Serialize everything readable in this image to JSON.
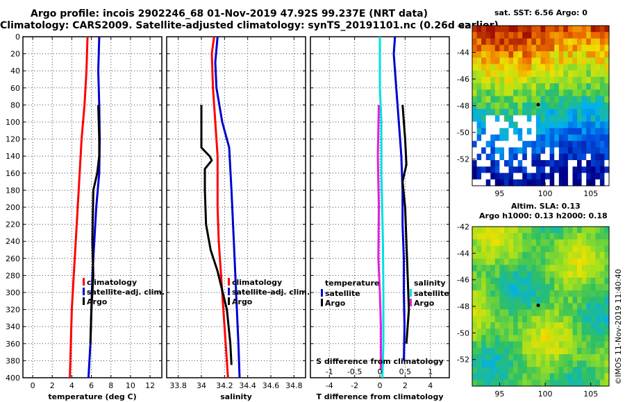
{
  "header": {
    "title_line1": "Argo profile: incois 2902246_68 01-Nov-2019 47.92S 99.237E (NRT data)",
    "title_line2": "Climatology: CARS2009. Satellite-adjusted climatology: synTS_20191101.nc (0.26d earlier)"
  },
  "depth_axis": {
    "min": 0,
    "max": 400,
    "ticks": [
      0,
      20,
      40,
      60,
      80,
      100,
      120,
      140,
      160,
      180,
      200,
      220,
      240,
      260,
      280,
      300,
      320,
      340,
      360,
      380,
      400
    ]
  },
  "colors": {
    "climatology": "#ff0000",
    "satellite": "#0000d0",
    "argo": "#000000",
    "t_diff": "#00e0e0",
    "s_diff": "#e020e0"
  },
  "chart_data": [
    {
      "type": "line",
      "id": "temperature",
      "xlabel": "temperature (deg C)",
      "xlim": [
        -1,
        13.2
      ],
      "xticks": [
        0,
        2,
        4,
        6,
        8,
        10,
        12
      ],
      "ylabel": "depth",
      "ylim": [
        0,
        400
      ],
      "series": [
        {
          "name": "climatology",
          "color": "#ff0000",
          "points": [
            [
              5.6,
              0
            ],
            [
              5.5,
              40
            ],
            [
              5.3,
              80
            ],
            [
              5.0,
              120
            ],
            [
              4.8,
              160
            ],
            [
              4.6,
              200
            ],
            [
              4.4,
              240
            ],
            [
              4.2,
              280
            ],
            [
              4.0,
              320
            ],
            [
              3.9,
              360
            ],
            [
              3.8,
              400
            ]
          ]
        },
        {
          "name": "satellite-adj. clim.",
          "color": "#0000d0",
          "points": [
            [
              6.8,
              0
            ],
            [
              6.7,
              40
            ],
            [
              6.8,
              80
            ],
            [
              6.85,
              120
            ],
            [
              6.8,
              160
            ],
            [
              6.5,
              200
            ],
            [
              6.3,
              240
            ],
            [
              6.1,
              280
            ],
            [
              6.0,
              320
            ],
            [
              5.9,
              360
            ],
            [
              5.7,
              400
            ]
          ]
        },
        {
          "name": "Argo",
          "color": "#000000",
          "points": [
            [
              6.7,
              80
            ],
            [
              6.8,
              120
            ],
            [
              6.8,
              140
            ],
            [
              6.6,
              160
            ],
            [
              6.2,
              180
            ],
            [
              6.1,
              240
            ],
            [
              6.2,
              280
            ],
            [
              6.0,
              320
            ],
            [
              5.9,
              360
            ]
          ]
        }
      ],
      "legend": {
        "position": "lower-right",
        "labels": [
          "climatology",
          "satellite-adj. clim.",
          "Argo"
        ]
      }
    },
    {
      "type": "line",
      "id": "salinity",
      "xlabel": "salinity",
      "xlim": [
        33.7,
        34.9
      ],
      "xticks": [
        33.8,
        34,
        34.2,
        34.4,
        34.6,
        34.8
      ],
      "xtick_labels": [
        "33.8",
        "34",
        "34.2",
        "34.4",
        "34.6",
        "34.8"
      ],
      "ylabel": "depth",
      "ylim": [
        0,
        400
      ],
      "series": [
        {
          "name": "climatology",
          "color": "#ff0000",
          "points": [
            [
              34.11,
              0
            ],
            [
              34.09,
              20
            ],
            [
              34.1,
              60
            ],
            [
              34.12,
              100
            ],
            [
              34.14,
              140
            ],
            [
              34.14,
              200
            ],
            [
              34.15,
              240
            ],
            [
              34.18,
              300
            ],
            [
              34.2,
              340
            ],
            [
              34.23,
              400
            ]
          ]
        },
        {
          "name": "satellite-adj. clim.",
          "color": "#0000d0",
          "points": [
            [
              34.14,
              0
            ],
            [
              34.12,
              30
            ],
            [
              34.13,
              60
            ],
            [
              34.18,
              100
            ],
            [
              34.24,
              130
            ],
            [
              34.26,
              180
            ],
            [
              34.28,
              240
            ],
            [
              34.3,
              300
            ],
            [
              34.32,
              360
            ],
            [
              34.33,
              400
            ]
          ]
        },
        {
          "name": "Argo",
          "color": "#000000",
          "points": [
            [
              34.0,
              80
            ],
            [
              34.0,
              130
            ],
            [
              34.07,
              140
            ],
            [
              34.09,
              145
            ],
            [
              34.03,
              155
            ],
            [
              34.03,
              180
            ],
            [
              34.04,
              220
            ],
            [
              34.08,
              250
            ],
            [
              34.14,
              275
            ],
            [
              34.22,
              320
            ],
            [
              34.25,
              360
            ],
            [
              34.26,
              385
            ]
          ]
        }
      ],
      "legend": {
        "position": "lower-right",
        "labels": [
          "climatology",
          "satellite-adj. clim.",
          "Argo"
        ]
      }
    },
    {
      "type": "line",
      "id": "differences",
      "xlabel": "T difference from climatology",
      "xlim": [
        -5.5,
        5.5
      ],
      "xticks": [
        -4,
        -2,
        0,
        2,
        4
      ],
      "top_axis": {
        "label": "S difference from climatology",
        "ticks": [
          -1,
          -0.5,
          0,
          0.5,
          1
        ],
        "xlim": [
          -1.375,
          1.375
        ]
      },
      "ylabel": "depth",
      "ylim": [
        0,
        400
      ],
      "series": [
        {
          "name": "temperature satellite",
          "axis": "T",
          "color": "#0000d0",
          "points": [
            [
              1.2,
              0
            ],
            [
              1.1,
              20
            ],
            [
              1.3,
              60
            ],
            [
              1.5,
              100
            ],
            [
              1.7,
              140
            ],
            [
              1.8,
              180
            ],
            [
              1.8,
              220
            ],
            [
              1.9,
              260
            ],
            [
              1.9,
              300
            ],
            [
              1.95,
              340
            ],
            [
              1.9,
              380
            ]
          ]
        },
        {
          "name": "temperature Argo",
          "axis": "T",
          "color": "#000000",
          "points": [
            [
              1.8,
              80
            ],
            [
              2.0,
              120
            ],
            [
              2.1,
              150
            ],
            [
              1.8,
              170
            ],
            [
              2.0,
              200
            ],
            [
              2.1,
              240
            ],
            [
              2.2,
              280
            ],
            [
              2.3,
              320
            ],
            [
              2.1,
              360
            ]
          ]
        },
        {
          "name": "salinity satellite",
          "axis": "S",
          "color": "#00e0e0",
          "points": [
            [
              0.0,
              0
            ],
            [
              0.0,
              60
            ],
            [
              0.03,
              100
            ],
            [
              0.03,
              160
            ],
            [
              0.06,
              240
            ],
            [
              0.07,
              300
            ],
            [
              0.07,
              360
            ],
            [
              0.05,
              400
            ]
          ]
        },
        {
          "name": "salinity Argo",
          "axis": "S",
          "color": "#e020e0",
          "points": [
            [
              -0.02,
              80
            ],
            [
              -0.04,
              140
            ],
            [
              -0.02,
              200
            ],
            [
              -0.03,
              260
            ],
            [
              0.0,
              300
            ],
            [
              0.02,
              340
            ],
            [
              0.02,
              390
            ]
          ]
        }
      ],
      "legend": {
        "temperature_heading": "temperature",
        "temperature_items": [
          "satellite",
          "Argo"
        ],
        "salinity_heading": "salinity",
        "salinity_items": [
          "satellite",
          "Argo"
        ]
      }
    },
    {
      "type": "heatmap",
      "id": "sst_map",
      "title": "sat. SST: 6.56 Argo: 0",
      "xticks": [
        95,
        100,
        105
      ],
      "yticks": [
        -42,
        -44,
        -46,
        -48,
        -50,
        -52
      ],
      "xlim": [
        92,
        107
      ],
      "ylim": [
        -54,
        -42
      ]
    },
    {
      "type": "heatmap",
      "id": "sla_map",
      "title_line1": "Altim. SLA: 0.13",
      "title_line2": "Argo h1000: 0.13 h2000: 0.18",
      "xticks": [
        95,
        100,
        105
      ],
      "yticks": [
        -42,
        -44,
        -46,
        -48,
        -50,
        -52
      ],
      "xlim": [
        92,
        107
      ],
      "ylim": [
        -54,
        -42
      ]
    }
  ],
  "credit": "©IMOS 11-Nov-2019 11:40:40"
}
